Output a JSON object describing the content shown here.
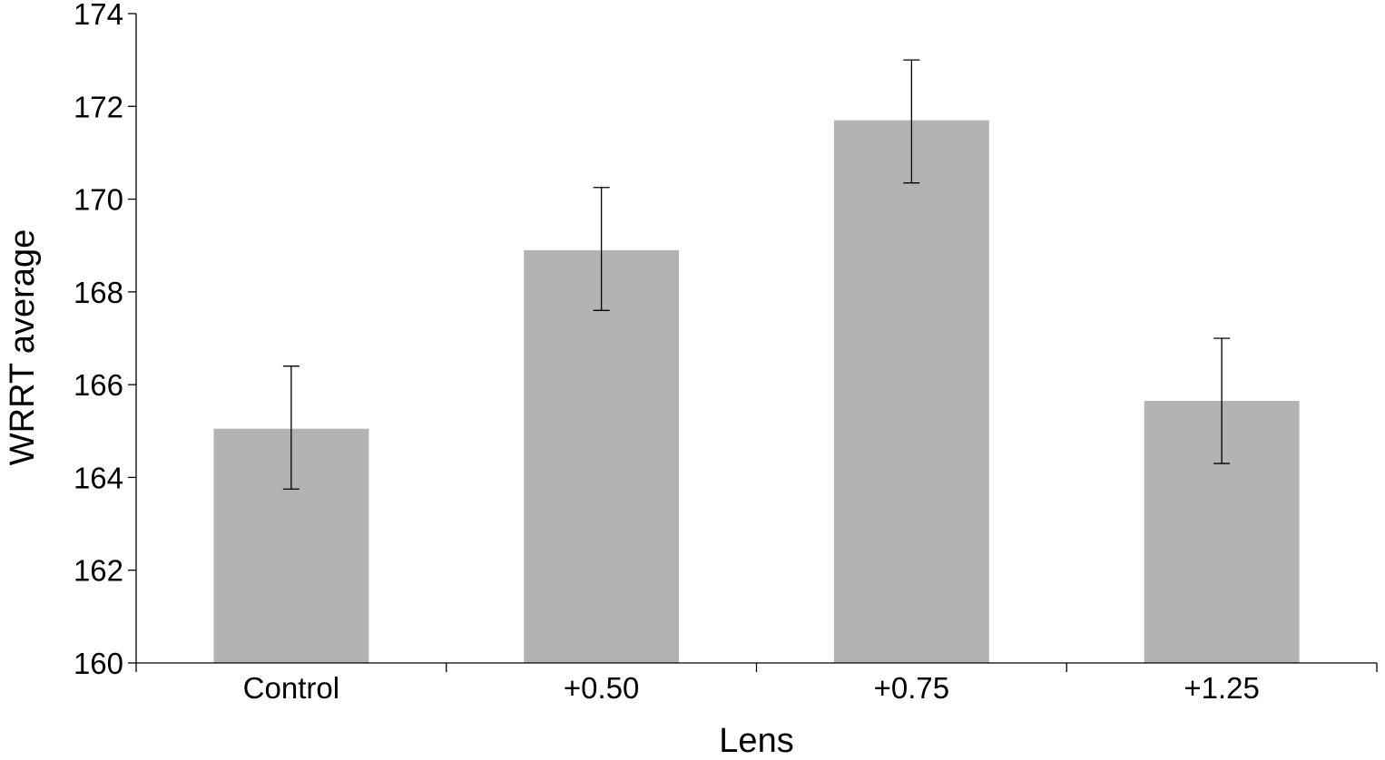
{
  "chart_data": {
    "type": "bar",
    "categories": [
      "Control",
      "+0.50",
      "+0.75",
      "+1.25"
    ],
    "values": [
      165.05,
      168.9,
      171.7,
      165.65
    ],
    "error_upper": [
      166.4,
      170.25,
      173.0,
      167.0
    ],
    "error_lower": [
      163.75,
      167.6,
      170.35,
      164.3
    ],
    "xlabel": "Lens",
    "ylabel": "WRRT average",
    "ylim": [
      160,
      174
    ],
    "yticks": [
      160,
      162,
      164,
      166,
      168,
      170,
      172,
      174
    ],
    "ytick_labels": [
      "160",
      "162",
      "164",
      "166",
      "168",
      "170",
      "172",
      "174"
    ],
    "bar_color": "#b3b3b3",
    "grid": false,
    "legend": "none"
  }
}
